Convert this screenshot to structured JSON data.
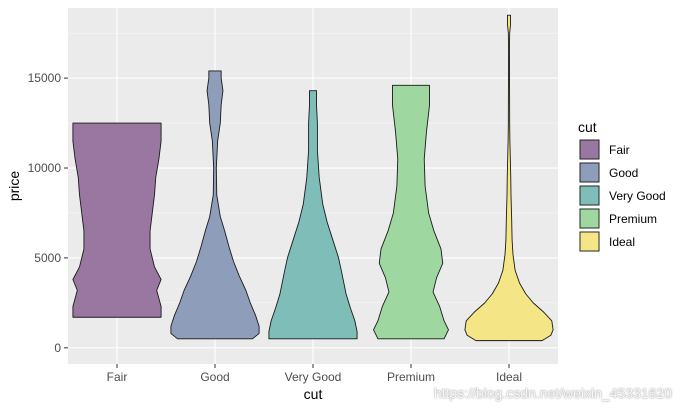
{
  "chart_data": {
    "type": "violin",
    "title": "",
    "xlabel": "cut",
    "ylabel": "price",
    "ylim": [
      -900,
      18900
    ],
    "yticks": [
      0,
      5000,
      10000,
      15000
    ],
    "ytick_labels": [
      "0",
      "5000",
      "10000",
      "15000"
    ],
    "categories": [
      "Fair",
      "Good",
      "Very Good",
      "Premium",
      "Ideal"
    ],
    "colors": [
      "#9A77A0",
      "#8E9DB9",
      "#7EBDB8",
      "#9ED7A0",
      "#F4E586"
    ],
    "outline_color": "#1a1a1a",
    "panel_background": "#EBEBEB",
    "gridlines": true,
    "legend": {
      "title": "cut",
      "position": "right",
      "entries": [
        "Fair",
        "Good",
        "Very Good",
        "Premium",
        "Ideal"
      ]
    },
    "series": [
      {
        "name": "Fair",
        "min": 1700,
        "max": 12500,
        "profile": [
          [
            1700,
            1.0
          ],
          [
            2300,
            1.0
          ],
          [
            3200,
            0.9
          ],
          [
            3800,
            1.0
          ],
          [
            4500,
            0.85
          ],
          [
            5500,
            0.75
          ],
          [
            6500,
            0.75
          ],
          [
            7500,
            0.8
          ],
          [
            8500,
            0.85
          ],
          [
            9500,
            0.88
          ],
          [
            10500,
            0.95
          ],
          [
            11500,
            1.0
          ],
          [
            12500,
            1.0
          ]
        ]
      },
      {
        "name": "Good",
        "min": 500,
        "max": 15400,
        "profile": [
          [
            500,
            0.85
          ],
          [
            800,
            1.0
          ],
          [
            1200,
            1.0
          ],
          [
            1800,
            0.92
          ],
          [
            2500,
            0.8
          ],
          [
            3200,
            0.7
          ],
          [
            4000,
            0.55
          ],
          [
            4800,
            0.42
          ],
          [
            5600,
            0.32
          ],
          [
            6500,
            0.22
          ],
          [
            7300,
            0.12
          ],
          [
            8500,
            0.04
          ],
          [
            10000,
            0.03
          ],
          [
            11500,
            0.06
          ],
          [
            12500,
            0.12
          ],
          [
            13500,
            0.14
          ],
          [
            14300,
            0.18
          ],
          [
            15000,
            0.14
          ],
          [
            15400,
            0.14
          ]
        ]
      },
      {
        "name": "Very Good",
        "min": 500,
        "max": 14300,
        "profile": [
          [
            500,
            1.0
          ],
          [
            900,
            1.0
          ],
          [
            1500,
            0.95
          ],
          [
            2200,
            0.85
          ],
          [
            3000,
            0.75
          ],
          [
            3600,
            0.7
          ],
          [
            4200,
            0.65
          ],
          [
            5000,
            0.58
          ],
          [
            6000,
            0.45
          ],
          [
            7000,
            0.32
          ],
          [
            8000,
            0.22
          ],
          [
            9500,
            0.14
          ],
          [
            11000,
            0.1
          ],
          [
            12500,
            0.1
          ],
          [
            13500,
            0.08
          ],
          [
            14300,
            0.08
          ]
        ]
      },
      {
        "name": "Premium",
        "min": 500,
        "max": 14600,
        "profile": [
          [
            500,
            0.75
          ],
          [
            1000,
            0.85
          ],
          [
            1500,
            0.75
          ],
          [
            2300,
            0.65
          ],
          [
            3100,
            0.5
          ],
          [
            3900,
            0.58
          ],
          [
            4700,
            0.72
          ],
          [
            5500,
            0.68
          ],
          [
            6500,
            0.52
          ],
          [
            7500,
            0.4
          ],
          [
            9000,
            0.32
          ],
          [
            10500,
            0.3
          ],
          [
            12000,
            0.35
          ],
          [
            13500,
            0.42
          ],
          [
            14600,
            0.42
          ]
        ]
      },
      {
        "name": "Ideal",
        "min": 400,
        "max": 18500,
        "profile": [
          [
            400,
            0.75
          ],
          [
            700,
            0.95
          ],
          [
            1000,
            1.0
          ],
          [
            1500,
            0.97
          ],
          [
            2000,
            0.78
          ],
          [
            2500,
            0.55
          ],
          [
            3000,
            0.38
          ],
          [
            3600,
            0.24
          ],
          [
            4300,
            0.14
          ],
          [
            5200,
            0.09
          ],
          [
            6000,
            0.07
          ],
          [
            7200,
            0.06
          ],
          [
            8500,
            0.045
          ],
          [
            9500,
            0.04
          ],
          [
            10500,
            0.03
          ],
          [
            11500,
            0.02
          ],
          [
            12500,
            0.015
          ],
          [
            13500,
            0.014
          ],
          [
            15000,
            0.012
          ],
          [
            16500,
            0.01
          ],
          [
            17500,
            0.015
          ],
          [
            18000,
            0.035
          ],
          [
            18500,
            0.035
          ]
        ]
      }
    ]
  },
  "watermark": "https://blog.csdn.net/weixin_45331620"
}
